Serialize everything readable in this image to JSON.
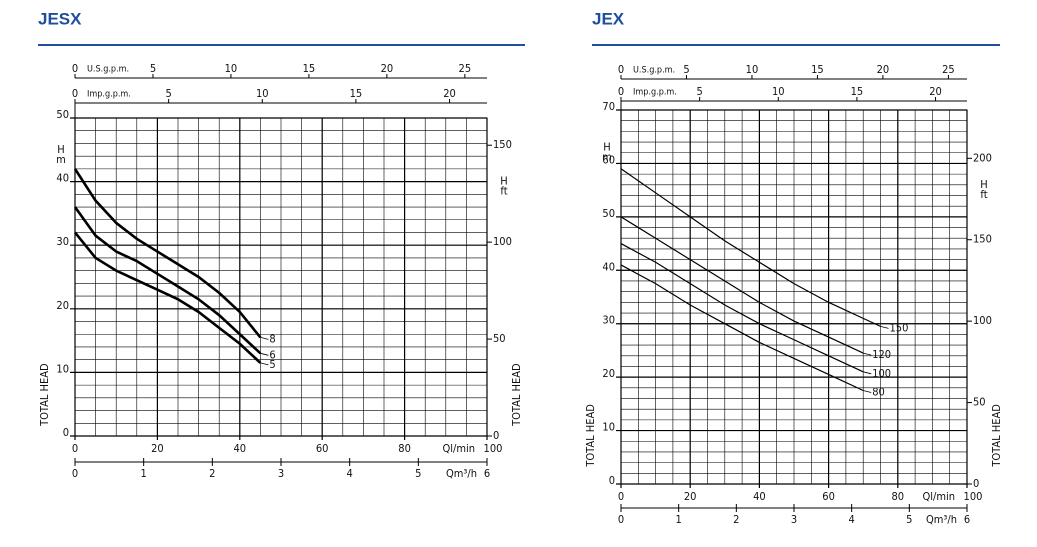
{
  "chart_data": [
    {
      "type": "line",
      "title": "JESX",
      "x_label": "Ql/min",
      "xlim": [
        0,
        100
      ],
      "xticks": [
        0,
        20,
        40,
        60,
        80,
        100
      ],
      "x_minor_step": 5,
      "y_label": "TOTAL HEAD",
      "y_unit": [
        "H",
        "m"
      ],
      "ylim": [
        0,
        50
      ],
      "yticks": [
        0,
        10,
        20,
        30,
        40,
        50
      ],
      "y_minor_step": 2,
      "y2_label": "TOTAL HEAD",
      "y2_unit": [
        "H",
        "ft"
      ],
      "y2lim": [
        0,
        164.04
      ],
      "y2ticks": [
        0,
        50,
        100,
        150
      ],
      "us_gpm_axis": {
        "label": "U.S.g.p.m.",
        "lim": [
          0,
          26.42
        ],
        "ticks": [
          0,
          5,
          10,
          15,
          20,
          25
        ]
      },
      "imp_gpm_axis": {
        "label": "Imp.g.p.m.",
        "lim": [
          0,
          22
        ],
        "ticks": [
          0,
          5,
          10,
          15,
          20
        ]
      },
      "m3h_axis": {
        "label": "Qm³/h",
        "lim": [
          0,
          6
        ],
        "ticks": [
          0,
          1,
          2,
          3,
          4,
          5,
          6
        ]
      },
      "grid": true,
      "x": [
        0,
        5,
        10,
        15,
        20,
        25,
        30,
        35,
        40,
        45
      ],
      "series": [
        {
          "name": "8",
          "color": "#000000",
          "values": [
            42,
            37,
            33.5,
            31,
            29,
            27,
            25,
            22.5,
            19.5,
            15.5
          ]
        },
        {
          "name": "6",
          "color": "#000000",
          "values": [
            36,
            31.5,
            29,
            27.5,
            25.5,
            23.5,
            21.5,
            19,
            16,
            13
          ]
        },
        {
          "name": "5",
          "color": "#000000",
          "values": [
            32,
            28,
            26,
            24.5,
            23,
            21.5,
            19.5,
            17,
            14.5,
            11.5
          ]
        }
      ]
    },
    {
      "type": "line",
      "title": "JEX",
      "x_label": "Ql/min",
      "xlim": [
        0,
        100
      ],
      "xticks": [
        0,
        20,
        40,
        60,
        80,
        100
      ],
      "x_minor_step": 5,
      "y_label": "TOTAL HEAD",
      "y_unit": [
        "H",
        "m"
      ],
      "ylim": [
        0,
        70
      ],
      "yticks": [
        0,
        10,
        20,
        30,
        40,
        50,
        60,
        70
      ],
      "y_minor_step": 2,
      "y2_label": "TOTAL HEAD",
      "y2_unit": [
        "H",
        "ft"
      ],
      "y2lim": [
        0,
        229.66
      ],
      "y2ticks": [
        0,
        50,
        100,
        150,
        200
      ],
      "us_gpm_axis": {
        "label": "U.S.g.p.m.",
        "lim": [
          0,
          26.42
        ],
        "ticks": [
          0,
          5,
          10,
          15,
          20,
          25
        ]
      },
      "imp_gpm_axis": {
        "label": "Imp.g.p.m.",
        "lim": [
          0,
          22
        ],
        "ticks": [
          0,
          5,
          10,
          15,
          20
        ]
      },
      "m3h_axis": {
        "label": "Qm³/h",
        "lim": [
          0,
          6
        ],
        "ticks": [
          0,
          1,
          2,
          3,
          4,
          5,
          6
        ]
      },
      "grid": true,
      "x": [
        0,
        10,
        20,
        30,
        40,
        50,
        60,
        70,
        75
      ],
      "series": [
        {
          "name": "150",
          "color": "#000000",
          "values": [
            59,
            54.5,
            50,
            45.5,
            41.5,
            37.5,
            34,
            31,
            29.5
          ]
        },
        {
          "name": "120",
          "color": "#000000",
          "values": [
            50,
            46,
            42,
            38,
            34,
            30.5,
            27.5,
            24.5,
            null
          ]
        },
        {
          "name": "100",
          "color": "#000000",
          "values": [
            45,
            41.5,
            37.5,
            33.5,
            30,
            27,
            24,
            21,
            null
          ]
        },
        {
          "name": "80",
          "color": "#000000",
          "values": [
            41,
            37.5,
            33.5,
            30,
            26.5,
            23.5,
            20.5,
            17.5,
            null
          ]
        }
      ]
    }
  ]
}
